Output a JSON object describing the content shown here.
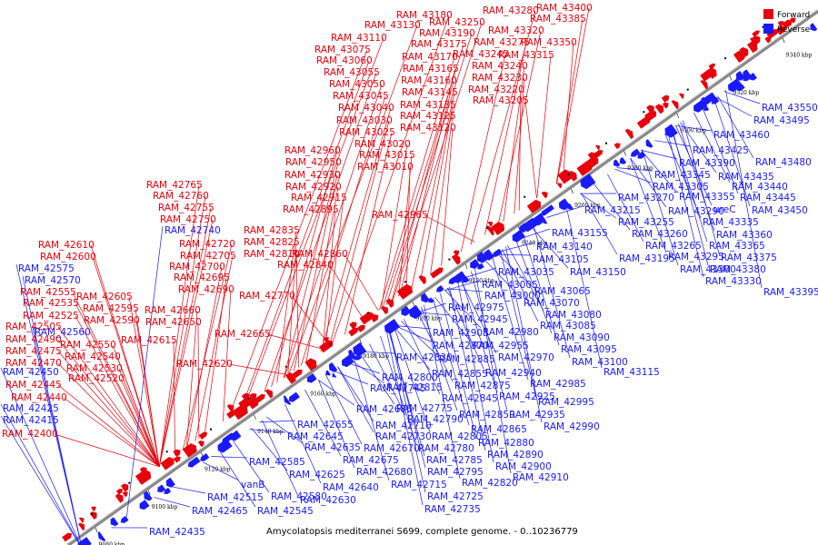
{
  "colors": {
    "forward": "#e8000b",
    "reverse": "#1a1aff",
    "axis": "#555555"
  },
  "legend": {
    "forward_label": "Forward",
    "reverse_label": "Reverse"
  },
  "caption": "Amycolatopsis mediterranei S699, complete genome. - 0..10236779",
  "ticks": [
    "9080 kbp",
    "9100 kbp",
    "9120 kbp",
    "9140 kbp",
    "9160 kbp",
    "9180 kbp",
    "9200 kbp",
    "9220 kbp",
    "9240 kbp",
    "9260 kbp",
    "9280 kbp",
    "9300 kbp",
    "9320 kbp",
    "9340 kbp"
  ],
  "forward_labels": [
    "RAM_43400",
    "RAM_43385",
    "RAM_43280",
    "RAM_43180",
    "RAM_43250",
    "RAM_43320",
    "RAM_43130",
    "RAM_43190",
    "RAM_43110",
    "RAM_43175",
    "RAM_43275",
    "RAM_43350",
    "RAM_43075",
    "RAM_43245",
    "RAM_43315",
    "RAM_43060",
    "RAM_43170",
    "RAM_43055",
    "RAM_43165",
    "RAM_43240",
    "RAM_43050",
    "RAM_43160",
    "RAM_43230",
    "RAM_43045",
    "RAM_43145",
    "RAM_43220",
    "RAM_43040",
    "RAM_43135",
    "RAM_43205",
    "RAM_43030",
    "RAM_43125",
    "RAM_43025",
    "RAM_43120",
    "RAM_43020",
    "RAM_42960",
    "RAM_43015",
    "RAM_42950",
    "RAM_43010",
    "RAM_42930",
    "RAM_42920",
    "RAM_42915",
    "RAM_42895",
    "RAM_42965",
    "RAM_42765",
    "RAM_42760",
    "RAM_42755",
    "RAM_42750",
    "RAM_42835",
    "RAM_42825",
    "RAM_42720",
    "RAM_42810",
    "RAM_42860",
    "RAM_42705",
    "RAM_42840",
    "RAM_42700",
    "RAM_42695",
    "RAM_42690",
    "RAM_42770",
    "RAM_42610",
    "RAM_42600",
    "RAM_42605",
    "RAM_42595",
    "RAM_42660",
    "RAM_42590",
    "RAM_42650",
    "RAM_42665",
    "RAM_42615",
    "RAM_42620",
    "RAM_42555",
    "RAM_42535",
    "RAM_42525",
    "RAM_42505",
    "RAM_42550",
    "RAM_42490",
    "RAM_42540",
    "RAM_42475",
    "RAM_42530",
    "RAM_42470",
    "RAM_42520",
    "RAM_42445",
    "RAM_42440",
    "RAM_42400"
  ],
  "reverse_labels": [
    "RAM_42740",
    "RAM_42575",
    "RAM_42570",
    "RAM_42560",
    "RAM_42450",
    "RAM_42425",
    "RAM_42415",
    "RAM_42435",
    "RAM_42465",
    "RAM_42515",
    "vanB",
    "RAM_42545",
    "RAM_42585",
    "RAM_42580",
    "RAM_42625",
    "RAM_42630",
    "RAM_42635",
    "RAM_42640",
    "RAM_42645",
    "RAM_42655",
    "RAM_42670",
    "RAM_42675",
    "RAM_42680",
    "RAM_42685",
    "RAM_42710",
    "RAM_42715",
    "RAM_42725",
    "RAM_42730",
    "RAM_42735",
    "RAM_42745",
    "RAM_42775",
    "RAM_42780",
    "RAM_42785",
    "RAM_42790",
    "RAM_42795",
    "RAM_42800",
    "RAM_42805",
    "RAM_42815",
    "RAM_42820",
    "RAM_42830",
    "RAM_42845",
    "RAM_42850",
    "RAM_42855",
    "RAM_42865",
    "RAM_42870",
    "RAM_42875",
    "RAM_42880",
    "RAM_42885",
    "RAM_42890",
    "RAM_42900",
    "RAM_42905",
    "RAM_42910",
    "RAM_42925",
    "RAM_42935",
    "RAM_42940",
    "RAM_42945",
    "RAM_42955",
    "RAM_42970",
    "RAM_42975",
    "RAM_42980",
    "RAM_42985",
    "RAM_42990",
    "RAM_42995",
    "RAM_43000",
    "RAM_43005",
    "RAM_43035",
    "RAM_43065",
    "RAM_43070",
    "RAM_43080",
    "RAM_43085",
    "RAM_43090",
    "RAM_43095",
    "RAM_43100",
    "RAM_43105",
    "RAM_43115",
    "RAM_43140",
    "RAM_43150",
    "RAM_43155",
    "RAM_43195",
    "RAM_43215",
    "RAM_43255",
    "RAM_43260",
    "RAM_43265",
    "RAM_43270",
    "RAM_43290",
    "RAM_43295",
    "ureC",
    "RAM_43300",
    "RAM_43305",
    "RAM_43330",
    "RAM_43335",
    "RAM_43345",
    "RAM_43355",
    "RAM_43360",
    "RAM_43365",
    "RAM_43375",
    "RAM_43380",
    "RAM_43390",
    "RAM_43395",
    "RAM_43425",
    "RAM_43435",
    "RAM_43440",
    "RAM_43445",
    "RAM_43450",
    "RAM_43460",
    "RAM_43480",
    "RAM_43495",
    "RAM_43550"
  ]
}
